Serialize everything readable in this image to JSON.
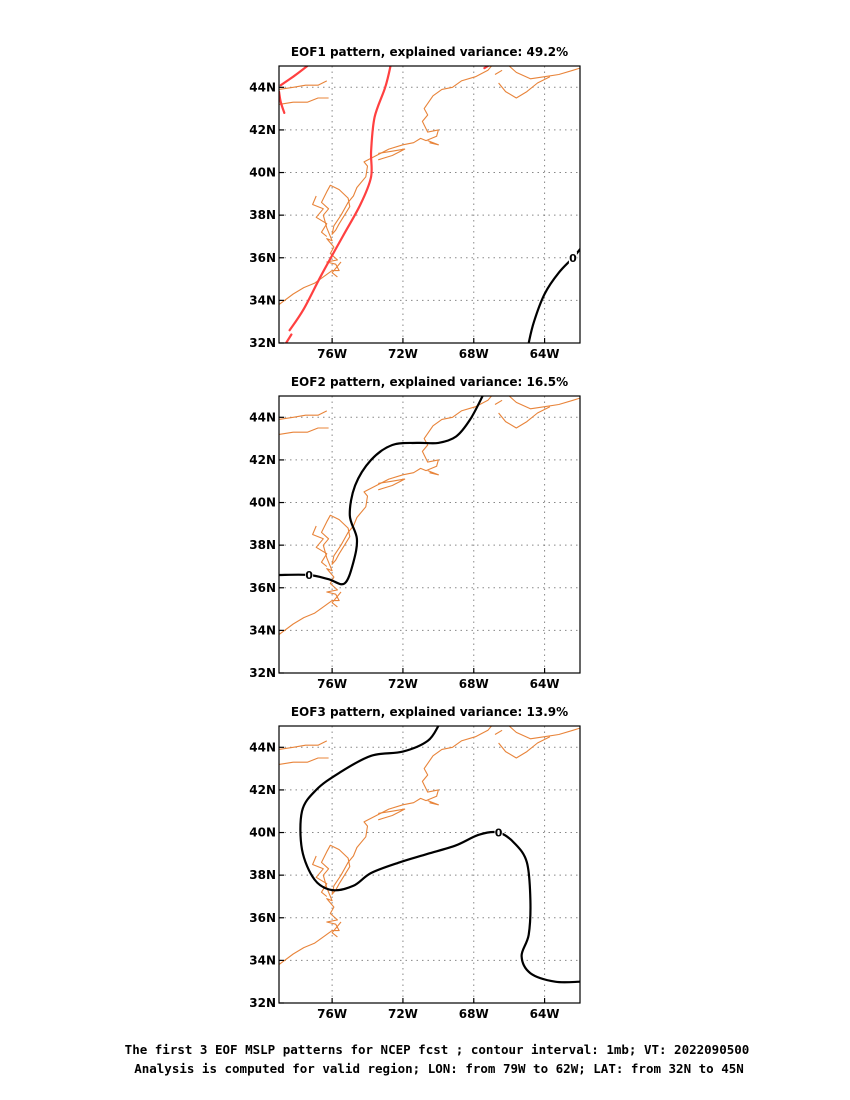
{
  "chart_data": [
    {
      "type": "map",
      "title": "EOF1 pattern, explained variance: 49.2%",
      "lon_range": [
        -79,
        -62
      ],
      "lat_range": [
        32,
        45
      ],
      "x_ticks": [
        {
          "value": -76,
          "label": "76W"
        },
        {
          "value": -72,
          "label": "72W"
        },
        {
          "value": -68,
          "label": "68W"
        },
        {
          "value": -64,
          "label": "64W"
        }
      ],
      "y_ticks": [
        {
          "value": 32,
          "label": "32N"
        },
        {
          "value": 34,
          "label": "34N"
        },
        {
          "value": 36,
          "label": "36N"
        },
        {
          "value": 38,
          "label": "38N"
        },
        {
          "value": 40,
          "label": "40N"
        },
        {
          "value": 42,
          "label": "42N"
        },
        {
          "value": 44,
          "label": "44N"
        }
      ],
      "grid": true,
      "contours": [
        {
          "level": "0",
          "color": "#000000",
          "label": "0",
          "label_at": [
            -62.4,
            36.0
          ],
          "points": [
            [
              -64.9,
              32.0
            ],
            [
              -64.6,
              33.0
            ],
            [
              -64.0,
              34.3
            ],
            [
              -63.2,
              35.3
            ],
            [
              -62.4,
              36.0
            ],
            [
              -62.0,
              36.4
            ]
          ]
        },
        {
          "level": "positive",
          "color": "#ff4040",
          "points": [
            [
              -78.4,
              32.6
            ],
            [
              -77.6,
              33.6
            ],
            [
              -76.6,
              35.2
            ],
            [
              -75.4,
              37.0
            ],
            [
              -74.4,
              38.5
            ],
            [
              -73.8,
              39.8
            ],
            [
              -73.8,
              41.0
            ],
            [
              -73.6,
              42.6
            ],
            [
              -73.0,
              44.0
            ],
            [
              -72.7,
              45.0
            ]
          ]
        },
        {
          "level": "positive",
          "color": "#ff4040",
          "points": [
            [
              -78.9,
              44.1
            ],
            [
              -78.2,
              44.5
            ],
            [
              -77.4,
              45.0
            ]
          ]
        },
        {
          "level": "positive",
          "color": "#ff4040",
          "points": [
            [
              -78.7,
              42.8
            ],
            [
              -78.9,
              43.3
            ],
            [
              -79.0,
              43.8
            ]
          ]
        },
        {
          "level": "positive",
          "color": "#ff4040",
          "points": [
            [
              -67.4,
              44.9
            ],
            [
              -67.2,
              45.0
            ]
          ]
        },
        {
          "level": "positive",
          "color": "#ff4040",
          "points": [
            [
              -78.6,
              32.0
            ],
            [
              -78.3,
              32.4
            ]
          ]
        }
      ]
    },
    {
      "type": "map",
      "title": "EOF2 pattern, explained variance: 16.5%",
      "lon_range": [
        -79,
        -62
      ],
      "lat_range": [
        32,
        45
      ],
      "x_ticks": [
        {
          "value": -76,
          "label": "76W"
        },
        {
          "value": -72,
          "label": "72W"
        },
        {
          "value": -68,
          "label": "68W"
        },
        {
          "value": -64,
          "label": "64W"
        }
      ],
      "y_ticks": [
        {
          "value": 32,
          "label": "32N"
        },
        {
          "value": 34,
          "label": "34N"
        },
        {
          "value": 36,
          "label": "36N"
        },
        {
          "value": 38,
          "label": "38N"
        },
        {
          "value": 40,
          "label": "40N"
        },
        {
          "value": 42,
          "label": "42N"
        },
        {
          "value": 44,
          "label": "44N"
        }
      ],
      "grid": true,
      "contours": [
        {
          "level": "0",
          "color": "#000000",
          "label": "0",
          "label_at": [
            -77.3,
            36.6
          ],
          "points": [
            [
              -79.0,
              36.6
            ],
            [
              -77.3,
              36.6
            ],
            [
              -76.2,
              36.4
            ],
            [
              -75.3,
              36.2
            ],
            [
              -74.8,
              37.2
            ],
            [
              -74.6,
              38.3
            ],
            [
              -75.0,
              39.4
            ],
            [
              -74.7,
              40.8
            ],
            [
              -73.8,
              42.0
            ],
            [
              -72.6,
              42.7
            ],
            [
              -71.2,
              42.8
            ],
            [
              -70.0,
              42.8
            ],
            [
              -69.0,
              43.1
            ],
            [
              -68.2,
              43.9
            ],
            [
              -67.5,
              45.0
            ]
          ]
        }
      ]
    },
    {
      "type": "map",
      "title": "EOF3 pattern, explained variance: 13.9%",
      "lon_range": [
        -79,
        -62
      ],
      "lat_range": [
        32,
        45
      ],
      "x_ticks": [
        {
          "value": -76,
          "label": "76W"
        },
        {
          "value": -72,
          "label": "72W"
        },
        {
          "value": -68,
          "label": "68W"
        },
        {
          "value": -64,
          "label": "64W"
        }
      ],
      "y_ticks": [
        {
          "value": 32,
          "label": "32N"
        },
        {
          "value": 34,
          "label": "34N"
        },
        {
          "value": 36,
          "label": "36N"
        },
        {
          "value": 38,
          "label": "38N"
        },
        {
          "value": 40,
          "label": "40N"
        },
        {
          "value": 42,
          "label": "42N"
        },
        {
          "value": 44,
          "label": "44N"
        }
      ],
      "grid": true,
      "contours": [
        {
          "level": "0",
          "color": "#000000",
          "label": "0",
          "label_at": [
            -66.6,
            40.0
          ],
          "points": [
            [
              -70.0,
              45.0
            ],
            [
              -70.6,
              44.3
            ],
            [
              -72.0,
              43.8
            ],
            [
              -73.8,
              43.6
            ],
            [
              -75.6,
              42.8
            ],
            [
              -76.9,
              42.0
            ],
            [
              -77.7,
              41.0
            ],
            [
              -77.7,
              39.2
            ],
            [
              -77.0,
              37.8
            ],
            [
              -76.0,
              37.3
            ],
            [
              -74.8,
              37.5
            ],
            [
              -73.8,
              38.1
            ],
            [
              -72.2,
              38.6
            ],
            [
              -70.6,
              39.0
            ],
            [
              -69.0,
              39.4
            ],
            [
              -67.7,
              39.9
            ],
            [
              -66.6,
              40.0
            ],
            [
              -65.7,
              39.5
            ],
            [
              -65.0,
              38.6
            ],
            [
              -64.8,
              36.8
            ],
            [
              -64.9,
              35.2
            ],
            [
              -65.3,
              34.2
            ],
            [
              -64.8,
              33.4
            ],
            [
              -63.4,
              33.0
            ],
            [
              -62.0,
              33.0
            ]
          ]
        }
      ]
    }
  ],
  "coastline": [
    [
      [
        -79.0,
        33.8
      ],
      [
        -78.2,
        34.3
      ],
      [
        -77.6,
        34.6
      ],
      [
        -77.0,
        34.8
      ],
      [
        -76.5,
        35.1
      ],
      [
        -76.0,
        35.4
      ],
      [
        -75.6,
        35.4
      ],
      [
        -75.8,
        35.7
      ],
      [
        -76.3,
        35.8
      ],
      [
        -75.7,
        35.9
      ],
      [
        -76.1,
        36.2
      ],
      [
        -75.9,
        36.5
      ],
      [
        -76.3,
        36.9
      ],
      [
        -76.0,
        36.8
      ],
      [
        -76.3,
        37.4
      ],
      [
        -76.5,
        38.0
      ],
      [
        -76.2,
        38.3
      ],
      [
        -76.6,
        38.6
      ],
      [
        -76.3,
        39.1
      ],
      [
        -76.1,
        39.4
      ],
      [
        -75.6,
        39.2
      ],
      [
        -75.1,
        38.8
      ],
      [
        -75.0,
        38.4
      ],
      [
        -75.3,
        38.0
      ],
      [
        -75.6,
        37.6
      ],
      [
        -75.8,
        37.3
      ],
      [
        -76.0,
        37.1
      ],
      [
        -75.9,
        37.5
      ],
      [
        -75.5,
        38.0
      ],
      [
        -75.1,
        38.6
      ],
      [
        -74.8,
        38.9
      ],
      [
        -74.6,
        39.3
      ],
      [
        -74.1,
        39.8
      ],
      [
        -74.0,
        40.3
      ],
      [
        -74.2,
        40.5
      ],
      [
        -73.5,
        40.8
      ],
      [
        -72.8,
        41.1
      ],
      [
        -72.0,
        41.3
      ],
      [
        -71.4,
        41.4
      ],
      [
        -71.0,
        41.6
      ],
      [
        -70.7,
        41.5
      ],
      [
        -70.1,
        41.7
      ],
      [
        -70.0,
        42.0
      ],
      [
        -70.6,
        41.9
      ],
      [
        -70.9,
        42.4
      ],
      [
        -70.6,
        42.7
      ],
      [
        -70.8,
        43.0
      ],
      [
        -70.3,
        43.6
      ],
      [
        -69.8,
        43.9
      ],
      [
        -69.2,
        44.0
      ],
      [
        -68.7,
        44.3
      ],
      [
        -67.9,
        44.5
      ],
      [
        -67.2,
        44.8
      ],
      [
        -67.0,
        45.0
      ]
    ],
    [
      [
        -73.4,
        40.6
      ],
      [
        -72.6,
        40.8
      ],
      [
        -71.9,
        41.1
      ],
      [
        -72.6,
        41.0
      ],
      [
        -73.4,
        40.9
      ]
    ],
    [
      [
        -70.5,
        41.4
      ],
      [
        -70.0,
        41.3
      ],
      [
        -70.6,
        41.5
      ]
    ],
    [
      [
        -76.3,
        37.0
      ],
      [
        -76.6,
        37.2
      ],
      [
        -76.3,
        37.6
      ],
      [
        -76.9,
        37.9
      ],
      [
        -76.5,
        38.3
      ],
      [
        -77.1,
        38.5
      ],
      [
        -76.9,
        38.9
      ]
    ],
    [
      [
        -75.7,
        35.1
      ],
      [
        -76.0,
        35.3
      ],
      [
        -75.5,
        35.8
      ]
    ],
    [
      [
        -79.0,
        43.2
      ],
      [
        -78.2,
        43.3
      ],
      [
        -77.4,
        43.3
      ],
      [
        -76.8,
        43.5
      ],
      [
        -76.2,
        43.5
      ]
    ],
    [
      [
        -79.0,
        43.9
      ],
      [
        -78.2,
        44.0
      ],
      [
        -77.5,
        44.1
      ],
      [
        -76.8,
        44.1
      ],
      [
        -76.3,
        44.3
      ]
    ],
    [
      [
        -66.0,
        45.0
      ],
      [
        -65.6,
        44.7
      ],
      [
        -64.8,
        44.4
      ],
      [
        -64.0,
        44.5
      ],
      [
        -63.2,
        44.6
      ],
      [
        -62.4,
        44.8
      ],
      [
        -62.0,
        44.9
      ]
    ],
    [
      [
        -66.6,
        44.2
      ],
      [
        -66.2,
        43.8
      ],
      [
        -65.6,
        43.5
      ],
      [
        -65.0,
        43.8
      ],
      [
        -64.4,
        44.2
      ],
      [
        -63.7,
        44.5
      ]
    ],
    [
      [
        -66.8,
        44.6
      ],
      [
        -66.4,
        44.8
      ]
    ]
  ],
  "caption": {
    "line1": "The first 3 EOF MSLP patterns for NCEP fcst ; contour interval: 1mb; VT: 2022090500",
    "line2": "Analysis is computed for valid region; LON: from 79W to 62W; LAT: from 32N to 45N"
  }
}
